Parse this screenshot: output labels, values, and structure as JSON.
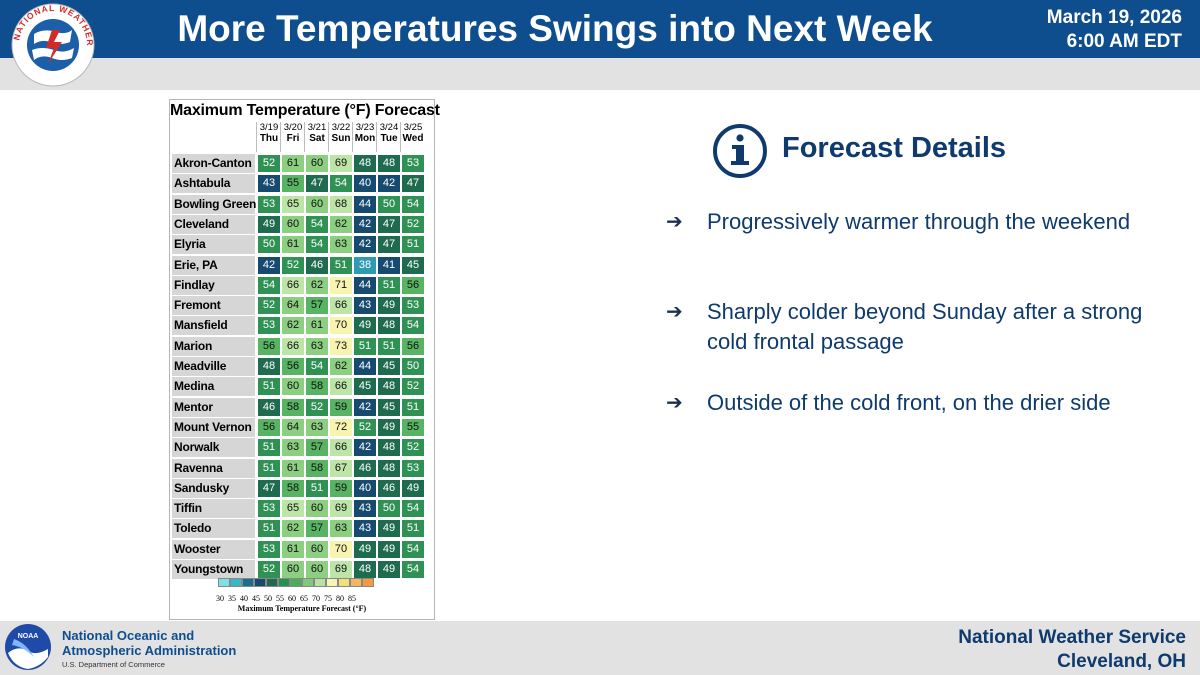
{
  "header": {
    "title": "More Temperatures Swings into Next Week",
    "date": "March 19, 2026",
    "time": "6:00 AM EDT",
    "logo_text": "NATIONAL WEATHER SERVICE"
  },
  "table": {
    "title": "Maximum Temperature (°F) Forecast",
    "columns": [
      {
        "date": "3/19",
        "day": "Thu"
      },
      {
        "date": "3/20",
        "day": "Fri"
      },
      {
        "date": "3/21",
        "day": "Sat"
      },
      {
        "date": "3/22",
        "day": "Sun"
      },
      {
        "date": "3/23",
        "day": "Mon"
      },
      {
        "date": "3/24",
        "day": "Tue"
      },
      {
        "date": "3/25",
        "day": "Wed"
      }
    ],
    "rows": [
      {
        "city": "Akron-Canton",
        "temps": [
          52,
          61,
          60,
          69,
          48,
          48,
          53
        ]
      },
      {
        "city": "Ashtabula",
        "temps": [
          43,
          55,
          47,
          54,
          40,
          42,
          47
        ]
      },
      {
        "city": "Bowling Green",
        "temps": [
          53,
          65,
          60,
          68,
          44,
          50,
          54
        ]
      },
      {
        "city": "Cleveland",
        "temps": [
          49,
          60,
          54,
          62,
          42,
          47,
          52
        ]
      },
      {
        "city": "Elyria",
        "temps": [
          50,
          61,
          54,
          63,
          42,
          47,
          51
        ]
      },
      {
        "city": "Erie, PA",
        "temps": [
          42,
          52,
          46,
          51,
          38,
          41,
          45
        ]
      },
      {
        "city": "Findlay",
        "temps": [
          54,
          66,
          62,
          71,
          44,
          51,
          56
        ]
      },
      {
        "city": "Fremont",
        "temps": [
          52,
          64,
          57,
          66,
          43,
          49,
          53
        ]
      },
      {
        "city": "Mansfield",
        "temps": [
          53,
          62,
          61,
          70,
          49,
          48,
          54
        ]
      },
      {
        "city": "Marion",
        "temps": [
          56,
          66,
          63,
          73,
          51,
          51,
          56
        ]
      },
      {
        "city": "Meadville",
        "temps": [
          48,
          56,
          54,
          62,
          44,
          45,
          50
        ]
      },
      {
        "city": "Medina",
        "temps": [
          51,
          60,
          58,
          66,
          45,
          48,
          52
        ]
      },
      {
        "city": "Mentor",
        "temps": [
          46,
          58,
          52,
          59,
          42,
          45,
          51
        ]
      },
      {
        "city": "Mount Vernon",
        "temps": [
          56,
          64,
          63,
          72,
          52,
          49,
          55
        ]
      },
      {
        "city": "Norwalk",
        "temps": [
          51,
          63,
          57,
          66,
          42,
          48,
          52
        ]
      },
      {
        "city": "Ravenna",
        "temps": [
          51,
          61,
          58,
          67,
          46,
          48,
          53
        ]
      },
      {
        "city": "Sandusky",
        "temps": [
          47,
          58,
          51,
          59,
          40,
          46,
          49
        ]
      },
      {
        "city": "Tiffin",
        "temps": [
          53,
          65,
          60,
          69,
          43,
          50,
          54
        ]
      },
      {
        "city": "Toledo",
        "temps": [
          51,
          62,
          57,
          63,
          43,
          49,
          51
        ]
      },
      {
        "city": "Wooster",
        "temps": [
          53,
          61,
          60,
          70,
          49,
          49,
          54
        ]
      },
      {
        "city": "Youngstown",
        "temps": [
          52,
          60,
          60,
          69,
          48,
          49,
          54
        ]
      }
    ],
    "scale": {
      "labels": [
        "30",
        "35",
        "40",
        "45",
        "50",
        "55",
        "60",
        "65",
        "70",
        "75",
        "80",
        "85"
      ],
      "colors": [
        "#7fe0e6",
        "#38b7c6",
        "#1b6f8a",
        "#174a6f",
        "#1e6b4f",
        "#2a8f53",
        "#4aac5d",
        "#82c878",
        "#b8e2a3",
        "#f6f5b5",
        "#f2e07a",
        "#f4b75e",
        "#f59b3c"
      ],
      "title": "Maximum Temperature Forecast (°F)"
    }
  },
  "details": {
    "title": "Forecast Details",
    "bullets": [
      "Progressively warmer through the weekend",
      "Sharply colder beyond Sunday after a strong cold frontal passage",
      "Outside of the cold front, on the drier side"
    ]
  },
  "footer": {
    "noaa_line1": "National Oceanic and",
    "noaa_line2": "Atmospheric Administration",
    "noaa_dept": "U.S. Department of Commerce",
    "noaa_logo_text": "NOAA",
    "office_line1": "National Weather Service",
    "office_line2": "Cleveland, OH"
  },
  "colors": {
    "header_blue": "#0e4d8e",
    "text_navy": "#0e3a6e"
  }
}
